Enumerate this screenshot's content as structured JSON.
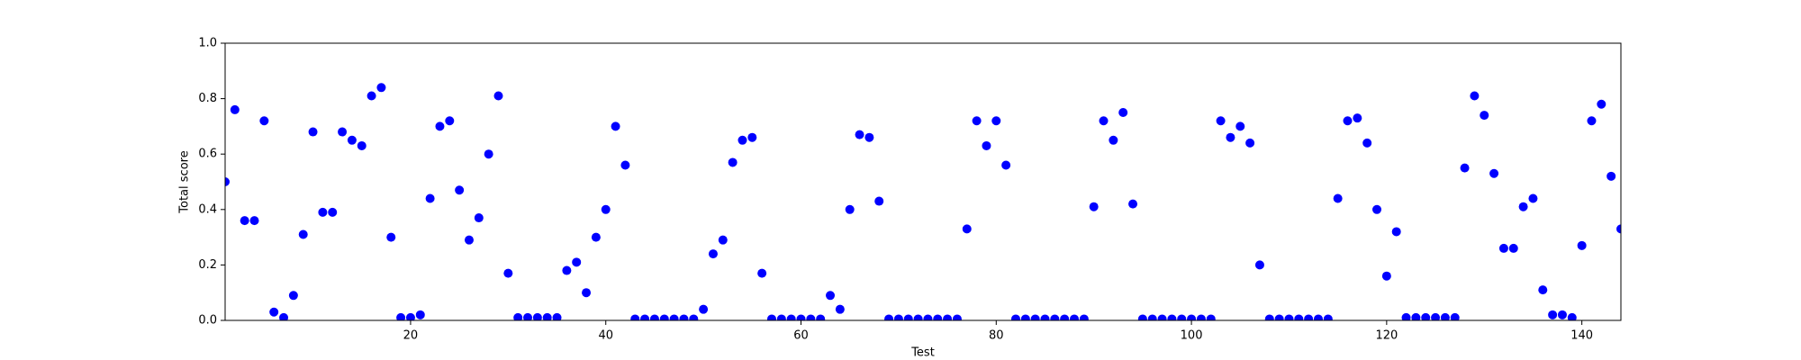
{
  "chart_data": {
    "type": "scatter",
    "x_label": "Test",
    "y_label": "Total score",
    "x": [
      1,
      2,
      3,
      4,
      5,
      6,
      7,
      8,
      9,
      10,
      11,
      12,
      13,
      14,
      15,
      16,
      17,
      18,
      19,
      20,
      21,
      22,
      23,
      24,
      25,
      26,
      27,
      28,
      29,
      30,
      31,
      32,
      33,
      34,
      35,
      36,
      37,
      38,
      39,
      40,
      41,
      42,
      43,
      44,
      45,
      46,
      47,
      48,
      49,
      50,
      51,
      52,
      53,
      54,
      55,
      56,
      57,
      58,
      59,
      60,
      61,
      62,
      63,
      64,
      65,
      66,
      67,
      68,
      69,
      70,
      71,
      72,
      73,
      74,
      75,
      76,
      77,
      78,
      79,
      80,
      81,
      82,
      83,
      84,
      85,
      86,
      87,
      88,
      89,
      90,
      91,
      92,
      93,
      94,
      95,
      96,
      97,
      98,
      99,
      100,
      101,
      102,
      103,
      104,
      105,
      106,
      107,
      108,
      109,
      110,
      111,
      112,
      113,
      114,
      115,
      116,
      117,
      118,
      119,
      120,
      121,
      122,
      123,
      124,
      125,
      126,
      127,
      128,
      129,
      130,
      131,
      132,
      133,
      134,
      135,
      136,
      137,
      138,
      139,
      140,
      141,
      142,
      143,
      144
    ],
    "series": [
      {
        "color": "#0000ff",
        "values": [
          0.5,
          0.76,
          0.36,
          0.36,
          0.72,
          0.03,
          0.01,
          0.09,
          0.31,
          0.68,
          0.39,
          0.39,
          0.68,
          0.65,
          0.63,
          0.81,
          0.84,
          0.3,
          0.01,
          0.01,
          0.02,
          0.44,
          0.7,
          0.72,
          0.47,
          0.29,
          0.37,
          0.6,
          0.81,
          0.17,
          0.01,
          0.01,
          0.01,
          0.01,
          0.01,
          0.18,
          0.21,
          0.1,
          0.3,
          0.4,
          0.7,
          0.56,
          0.005,
          0.005,
          0.005,
          0.005,
          0.005,
          0.005,
          0.005,
          0.04,
          0.24,
          0.29,
          0.57,
          0.65,
          0.66,
          0.17,
          0.005,
          0.005,
          0.005,
          0.005,
          0.005,
          0.005,
          0.09,
          0.04,
          0.4,
          0.67,
          0.66,
          0.43,
          0.005,
          0.005,
          0.005,
          0.005,
          0.005,
          0.005,
          0.005,
          0.005,
          0.33,
          0.72,
          0.63,
          0.72,
          0.56,
          0.005,
          0.005,
          0.005,
          0.005,
          0.005,
          0.005,
          0.005,
          0.005,
          0.41,
          0.72,
          0.65,
          0.75,
          0.42,
          0.005,
          0.005,
          0.005,
          0.005,
          0.005,
          0.005,
          0.005,
          0.005,
          0.72,
          0.66,
          0.7,
          0.64,
          0.2,
          0.005,
          0.005,
          0.005,
          0.005,
          0.005,
          0.005,
          0.005,
          0.44,
          0.72,
          0.73,
          0.64,
          0.4,
          0.16,
          0.32,
          0.01,
          0.01,
          0.01,
          0.01,
          0.01,
          0.01,
          0.55,
          0.81,
          0.74,
          0.53,
          0.26,
          0.26,
          0.41,
          0.44,
          0.11,
          0.02,
          0.02,
          0.01,
          0.27,
          0.72,
          0.78,
          0.52,
          0.33
        ]
      }
    ],
    "xlim": [
      1,
      144
    ],
    "xticks": [
      20,
      40,
      60,
      80,
      100,
      120,
      140
    ],
    "ylim": [
      0,
      1
    ],
    "yticks": [
      {
        "value": 0,
        "label": "0.0"
      },
      0.2,
      0.4,
      0.6,
      0.8,
      {
        "value": 1,
        "label": "1.0"
      }
    ],
    "grid": false
  }
}
